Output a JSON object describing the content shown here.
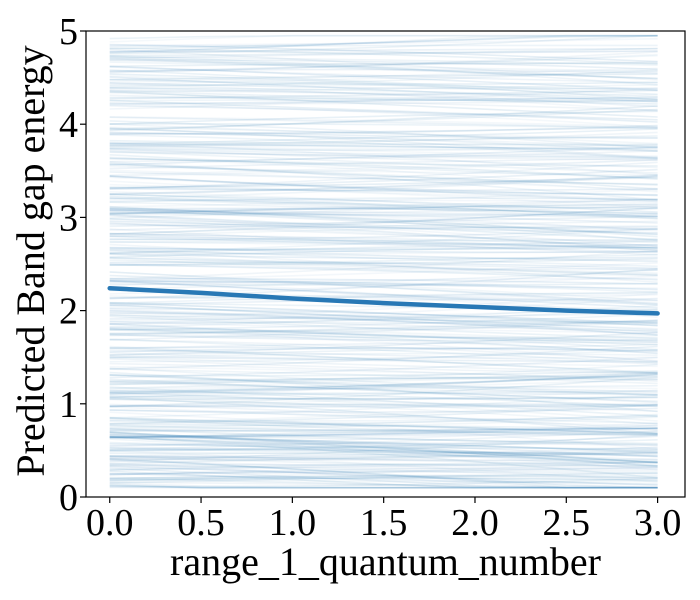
{
  "chart_data": {
    "type": "line",
    "title": "",
    "xlabel": "range_1_quantum_number",
    "ylabel": "Predicted Band gap energy",
    "xlim": [
      -0.13,
      3.15
    ],
    "ylim": [
      0,
      5
    ],
    "xticks": [
      "0.0",
      "0.5",
      "1.0",
      "1.5",
      "2.0",
      "2.5",
      "3.0"
    ],
    "yticks": [
      "0",
      "1",
      "2",
      "3",
      "4",
      "5"
    ],
    "grid": false,
    "legend": "none",
    "series": [
      {
        "role": "average",
        "x": [
          0.0,
          0.5,
          1.0,
          1.5,
          2.0,
          2.5,
          3.0
        ],
        "y": [
          2.24,
          2.19,
          2.13,
          2.08,
          2.04,
          2.0,
          1.97
        ]
      }
    ],
    "ice_lines": {
      "description": "individual conditional expectation curves (many faint lines)",
      "y_start_range": [
        0.1,
        4.95
      ],
      "y_end_range": [
        0.15,
        4.85
      ]
    },
    "colors": {
      "average_line": "#2878b5",
      "ice_lines": "#2f7fb5"
    }
  }
}
